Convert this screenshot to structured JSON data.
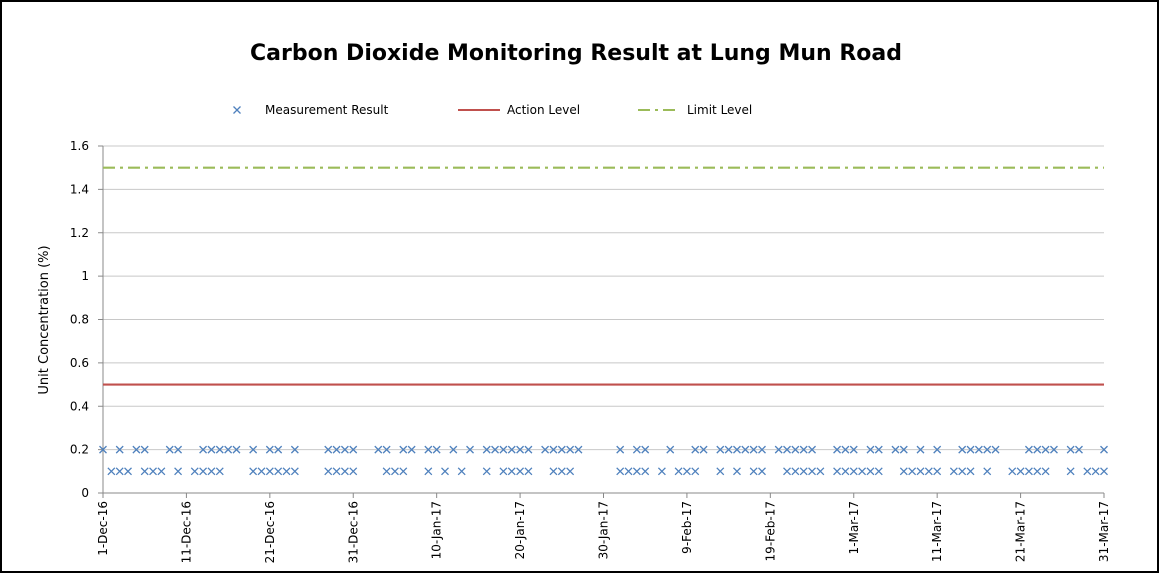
{
  "chart_data": {
    "type": "scatter",
    "title": "Carbon Dioxide Monitoring Result at Lung Mun Road",
    "y_label": "Unit Concentration (%)",
    "xlim": [
      "1-Dec-16",
      "31-Mar-17"
    ],
    "xticks": [
      "1-Dec-16",
      "11-Dec-16",
      "21-Dec-16",
      "31-Dec-16",
      "10-Jan-17",
      "20-Jan-17",
      "30-Jan-17",
      "9-Feb-17",
      "19-Feb-17",
      "1-Mar-17",
      "11-Mar-17",
      "21-Mar-17",
      "31-Mar-17"
    ],
    "ylim": [
      0,
      1.6
    ],
    "yticks": [
      0,
      0.2,
      0.4,
      0.6,
      0.8,
      1,
      1.2,
      1.4,
      1.6
    ],
    "grid": true,
    "legend": "top",
    "series": [
      {
        "name": "Measurement Result",
        "color": "#4f81bd",
        "marker": "x",
        "x": [
          "1-Dec-16",
          "3-Dec-16",
          "5-Dec-16",
          "6-Dec-16",
          "9-Dec-16",
          "10-Dec-16",
          "13-Dec-16",
          "14-Dec-16",
          "15-Dec-16",
          "16-Dec-16",
          "17-Dec-16",
          "19-Dec-16",
          "21-Dec-16",
          "22-Dec-16",
          "24-Dec-16",
          "28-Dec-16",
          "29-Dec-16",
          "30-Dec-16",
          "31-Dec-16",
          "3-Jan-17",
          "4-Jan-17",
          "6-Jan-17",
          "7-Jan-17",
          "9-Jan-17",
          "10-Jan-17",
          "12-Jan-17",
          "14-Jan-17",
          "16-Jan-17",
          "17-Jan-17",
          "18-Jan-17",
          "19-Jan-17",
          "20-Jan-17",
          "21-Jan-17",
          "23-Jan-17",
          "24-Jan-17",
          "25-Jan-17",
          "26-Jan-17",
          "27-Jan-17",
          "1-Feb-17",
          "3-Feb-17",
          "4-Feb-17",
          "7-Feb-17",
          "10-Feb-17",
          "11-Feb-17",
          "13-Feb-17",
          "14-Feb-17",
          "15-Feb-17",
          "16-Feb-17",
          "17-Feb-17",
          "18-Feb-17",
          "20-Feb-17",
          "21-Feb-17",
          "22-Feb-17",
          "23-Feb-17",
          "24-Feb-17",
          "27-Feb-17",
          "28-Feb-17",
          "1-Mar-17",
          "3-Mar-17",
          "4-Mar-17",
          "6-Mar-17",
          "7-Mar-17",
          "9-Mar-17",
          "11-Mar-17",
          "14-Mar-17",
          "15-Mar-17",
          "16-Mar-17",
          "17-Mar-17",
          "18-Mar-17",
          "22-Mar-17",
          "23-Mar-17",
          "24-Mar-17",
          "25-Mar-17",
          "27-Mar-17",
          "28-Mar-17",
          "31-Mar-17",
          "2-Dec-16",
          "3-Dec-16",
          "4-Dec-16",
          "6-Dec-16",
          "7-Dec-16",
          "8-Dec-16",
          "10-Dec-16",
          "12-Dec-16",
          "13-Dec-16",
          "14-Dec-16",
          "15-Dec-16",
          "19-Dec-16",
          "20-Dec-16",
          "21-Dec-16",
          "22-Dec-16",
          "23-Dec-16",
          "24-Dec-16",
          "28-Dec-16",
          "29-Dec-16",
          "30-Dec-16",
          "31-Dec-16",
          "4-Jan-17",
          "5-Jan-17",
          "6-Jan-17",
          "9-Jan-17",
          "11-Jan-17",
          "13-Jan-17",
          "16-Jan-17",
          "18-Jan-17",
          "19-Jan-17",
          "20-Jan-17",
          "21-Jan-17",
          "24-Jan-17",
          "25-Jan-17",
          "26-Jan-17",
          "1-Feb-17",
          "2-Feb-17",
          "3-Feb-17",
          "4-Feb-17",
          "6-Feb-17",
          "8-Feb-17",
          "9-Feb-17",
          "10-Feb-17",
          "13-Feb-17",
          "15-Feb-17",
          "17-Feb-17",
          "18-Feb-17",
          "21-Feb-17",
          "22-Feb-17",
          "23-Feb-17",
          "24-Feb-17",
          "25-Feb-17",
          "27-Feb-17",
          "28-Feb-17",
          "1-Mar-17",
          "2-Mar-17",
          "3-Mar-17",
          "4-Mar-17",
          "7-Mar-17",
          "8-Mar-17",
          "9-Mar-17",
          "10-Mar-17",
          "11-Mar-17",
          "13-Mar-17",
          "14-Mar-17",
          "15-Mar-17",
          "17-Mar-17",
          "20-Mar-17",
          "21-Mar-17",
          "22-Mar-17",
          "23-Mar-17",
          "24-Mar-17",
          "27-Mar-17",
          "29-Mar-17",
          "30-Mar-17",
          "31-Mar-17"
        ],
        "values": [
          0.2,
          0.2,
          0.2,
          0.2,
          0.2,
          0.2,
          0.2,
          0.2,
          0.2,
          0.2,
          0.2,
          0.2,
          0.2,
          0.2,
          0.2,
          0.2,
          0.2,
          0.2,
          0.2,
          0.2,
          0.2,
          0.2,
          0.2,
          0.2,
          0.2,
          0.2,
          0.2,
          0.2,
          0.2,
          0.2,
          0.2,
          0.2,
          0.2,
          0.2,
          0.2,
          0.2,
          0.2,
          0.2,
          0.2,
          0.2,
          0.2,
          0.2,
          0.2,
          0.2,
          0.2,
          0.2,
          0.2,
          0.2,
          0.2,
          0.2,
          0.2,
          0.2,
          0.2,
          0.2,
          0.2,
          0.2,
          0.2,
          0.2,
          0.2,
          0.2,
          0.2,
          0.2,
          0.2,
          0.2,
          0.2,
          0.2,
          0.2,
          0.2,
          0.2,
          0.2,
          0.2,
          0.2,
          0.2,
          0.2,
          0.2,
          0.2,
          0.1,
          0.1,
          0.1,
          0.1,
          0.1,
          0.1,
          0.1,
          0.1,
          0.1,
          0.1,
          0.1,
          0.1,
          0.1,
          0.1,
          0.1,
          0.1,
          0.1,
          0.1,
          0.1,
          0.1,
          0.1,
          0.1,
          0.1,
          0.1,
          0.1,
          0.1,
          0.1,
          0.1,
          0.1,
          0.1,
          0.1,
          0.1,
          0.1,
          0.1,
          0.1,
          0.1,
          0.1,
          0.1,
          0.1,
          0.1,
          0.1,
          0.1,
          0.1,
          0.1,
          0.1,
          0.1,
          0.1,
          0.1,
          0.1,
          0.1,
          0.1,
          0.1,
          0.1,
          0.1,
          0.1,
          0.1,
          0.1,
          0.1,
          0.1,
          0.1,
          0.1,
          0.1,
          0.1,
          0.1,
          0.1,
          0.1,
          0.1,
          0.1,
          0.1,
          0.1,
          0.1,
          0.1,
          0.1,
          0.1,
          0.1,
          0.1
        ]
      },
      {
        "name": "Action Level",
        "color": "#c0504d",
        "line_style": "solid",
        "x": [
          "1-Dec-16",
          "31-Mar-17"
        ],
        "values": [
          0.5,
          0.5
        ]
      },
      {
        "name": "Limit Level",
        "color": "#9bbb59",
        "line_style": "dash-dot",
        "x": [
          "1-Dec-16",
          "31-Mar-17"
        ],
        "values": [
          1.5,
          1.5
        ]
      }
    ]
  }
}
